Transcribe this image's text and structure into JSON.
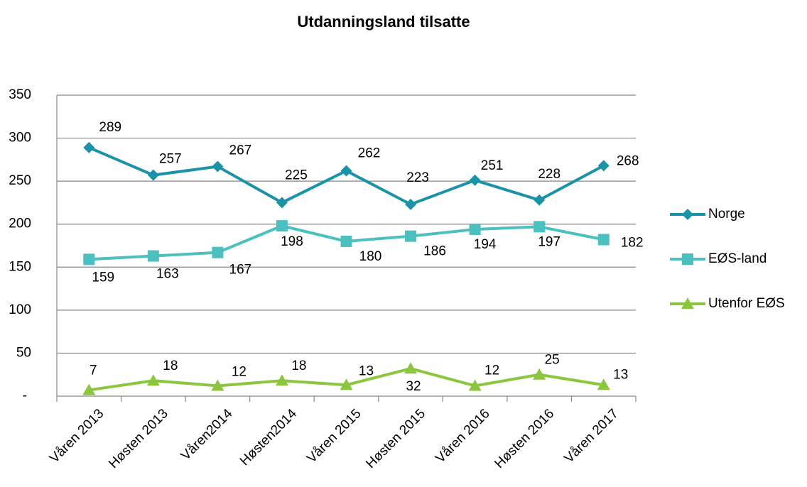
{
  "chart_data": {
    "type": "line",
    "title": "Utdanningsland tilsatte",
    "categories": [
      "Våren 2013",
      "Høsten 2013",
      "Våren2014",
      "Høsten2014",
      "Våren 2015",
      "Høsten 2015",
      "Våren 2016",
      "Høsten 2016",
      "Våren 2017"
    ],
    "series": [
      {
        "name": "Norge",
        "color": "#1b93a7",
        "marker": "diamond",
        "values": [
          289,
          257,
          267,
          225,
          262,
          223,
          251,
          228,
          268
        ]
      },
      {
        "name": "EØS-land",
        "color": "#4cbfbf",
        "marker": "square",
        "values": [
          159,
          163,
          167,
          198,
          180,
          186,
          194,
          197,
          182
        ]
      },
      {
        "name": "Utenfor EØS",
        "color": "#8cc63f",
        "marker": "triangle",
        "values": [
          7,
          18,
          12,
          18,
          13,
          32,
          12,
          25,
          13
        ]
      }
    ],
    "ylim": [
      0,
      350
    ],
    "yticks": [
      {
        "value": 0,
        "label": "-"
      },
      50,
      100,
      150,
      200,
      250,
      300,
      350
    ],
    "grid": true,
    "legend": "right"
  }
}
